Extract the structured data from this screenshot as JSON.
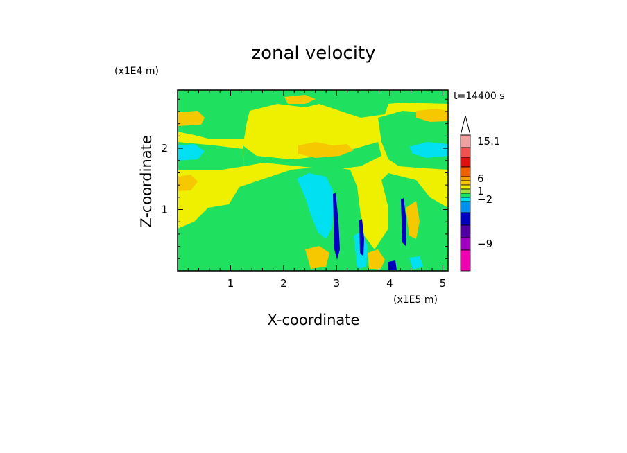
{
  "chart_data": {
    "type": "heatmap",
    "title": "zonal velocity",
    "xlabel": "X-coordinate",
    "ylabel": "Z-coordinate",
    "x_unit_label": "(x1E5 m)",
    "y_unit_label": "(x1E4 m)",
    "time_label": "t=14400 s",
    "xlim": [
      0.0,
      5.1
    ],
    "ylim": [
      0.0,
      2.95
    ],
    "x_ticks": [
      1,
      2,
      3,
      4,
      5
    ],
    "y_ticks": [
      1,
      2
    ],
    "x_tick_labels": [
      "1",
      "2",
      "3",
      "4",
      "5"
    ],
    "y_tick_labels": [
      "1",
      "2"
    ],
    "colorbar": {
      "labels": [
        {
          "value": 15.1,
          "text": "15.1"
        },
        {
          "value": 6,
          "text": "6"
        },
        {
          "value": 1,
          "text": "1"
        },
        {
          "value": -2,
          "text": "−2"
        },
        {
          "value": -9,
          "text": "−9"
        }
      ],
      "levels": [
        {
          "color": "#f0a0a0"
        },
        {
          "color": "#f05050"
        },
        {
          "color": "#e01010"
        },
        {
          "color": "#f06000"
        },
        {
          "color": "#f5a000"
        },
        {
          "color": "#f5c800"
        },
        {
          "color": "#eef000"
        },
        {
          "color": "#a0e040"
        },
        {
          "color": "#20e060"
        },
        {
          "color": "#00e0f0"
        },
        {
          "color": "#0090f0"
        },
        {
          "color": "#0000c0"
        },
        {
          "color": "#5000a0"
        },
        {
          "color": "#a000c0"
        },
        {
          "color": "#f000b0"
        }
      ]
    },
    "regions": [
      {
        "level": "yellow",
        "color": "#eef000",
        "note": "background"
      },
      {
        "level": "green",
        "color": "#20e060"
      },
      {
        "level": "cyan",
        "color": "#00e0f0"
      },
      {
        "level": "orange",
        "color": "#f5c800"
      },
      {
        "level": "blue",
        "color": "#0000c0"
      }
    ]
  }
}
